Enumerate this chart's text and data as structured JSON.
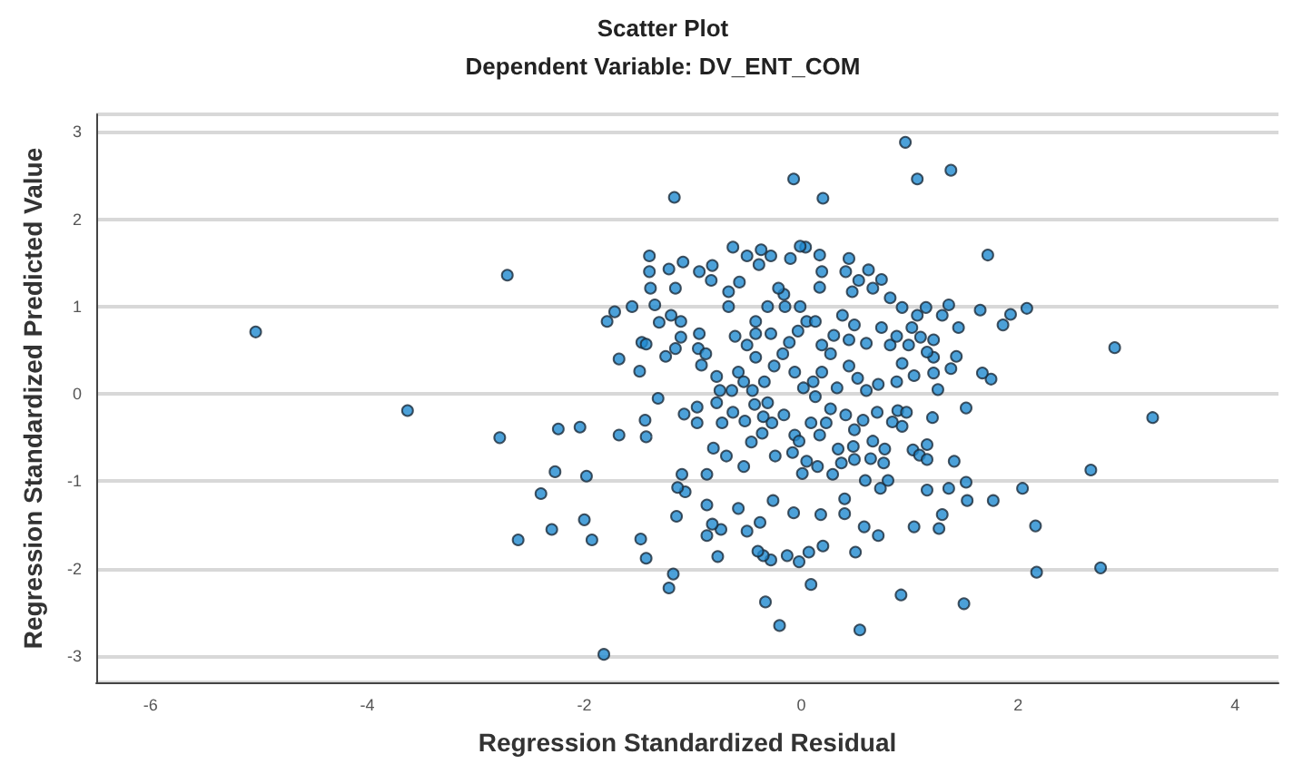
{
  "chart_data": {
    "type": "scatter",
    "title": "Scatter Plot",
    "subtitle": "Dependent Variable: DV_ENT_COM",
    "xlabel": "Regression Standardized Residual",
    "ylabel": "Regression Standardized Predicted Value",
    "xlim": [
      -6.5,
      4.4
    ],
    "ylim": [
      -3.3,
      3.2
    ],
    "xticks": [
      -6,
      -4,
      -2,
      0,
      2,
      4
    ],
    "yticks": [
      -3,
      -2,
      -1,
      0,
      1,
      2,
      3
    ],
    "grid": "y",
    "marker": "circle",
    "series": [
      {
        "color": "#1f8ad0",
        "x": [
          -5.03,
          -3.63,
          -2.71,
          -2.78,
          -2.24,
          -2.04,
          -1.79,
          -2.27,
          -1.98,
          -2.4,
          -2.0,
          -2.3,
          -2.61,
          -1.93,
          -1.82,
          0.96,
          1.07,
          1.38,
          -0.07,
          0.2,
          -1.17,
          1.72,
          2.89,
          3.24,
          2.67,
          2.04,
          2.16,
          2.17,
          2.76,
          0.92,
          1.5,
          0.54,
          -0.2,
          -0.33,
          0.09,
          -1.22,
          -1.18,
          -1.43,
          -1.48,
          -1.68,
          -1.68,
          -1.56,
          -1.72,
          2.08,
          1.93,
          1.86,
          1.65,
          1.75,
          1.67,
          1.52,
          1.53,
          1.77,
          1.36,
          1.52,
          1.41,
          1.3,
          1.27,
          1.04,
          0.71,
          0.58,
          0.5,
          0.2,
          0.07,
          -0.02,
          -0.13,
          -0.28,
          -0.35,
          -0.4,
          -0.5,
          -0.38,
          -0.58,
          -0.26,
          -0.07,
          0.18,
          0.4,
          0.4,
          -0.77,
          -0.74,
          -0.87,
          -0.82,
          -0.87,
          -1.15,
          -1.07,
          -1.14,
          -1.1,
          -0.87,
          -0.53,
          -0.69,
          -0.81,
          -0.46,
          -0.24,
          -0.08,
          0.01,
          0.05,
          0.15,
          0.29,
          0.37,
          0.34,
          0.49,
          0.59,
          0.73,
          0.8,
          0.76,
          0.64,
          0.66,
          0.77,
          1.03,
          1.09,
          1.16,
          1.16,
          1.16,
          0.48,
          0.49,
          0.57,
          0.7,
          0.84,
          0.93,
          0.89,
          0.97,
          1.21,
          1.26,
          1.22,
          1.22,
          1.22,
          1.3,
          1.36,
          1.45,
          1.43,
          1.38,
          1.15,
          1.07,
          0.93,
          0.82,
          0.74,
          0.62,
          0.53,
          0.66,
          0.47,
          0.44,
          0.41,
          0.17,
          0.19,
          0.17,
          0.04,
          -0.01,
          -0.1,
          -0.16,
          -0.21,
          -0.28,
          -0.37,
          -0.39,
          -0.5,
          -0.63,
          -0.57,
          -0.67,
          -0.82,
          -0.83,
          -0.94,
          -1.09,
          -1.22,
          -1.16,
          -1.4,
          -1.4,
          -1.39,
          -1.35,
          -1.31,
          -1.2,
          -1.11,
          -1.11,
          -1.16,
          -1.25,
          -1.47,
          -1.43,
          -1.49,
          -1.32,
          -1.44,
          -1.43,
          -1.08,
          -0.96,
          -0.96,
          -0.94,
          -0.95,
          -0.88,
          -0.92,
          -0.78,
          -0.75,
          -0.78,
          -0.73,
          -0.63,
          -0.52,
          -0.43,
          -0.35,
          -0.27,
          -0.36,
          -0.16,
          -0.06,
          -0.02,
          0.09,
          0.17,
          0.23,
          -0.64,
          -0.58,
          -0.53,
          -0.45,
          -0.34,
          -0.31,
          -0.25,
          -0.42,
          -0.5,
          -0.42,
          -0.28,
          -0.11,
          -0.03,
          0.05,
          0.13,
          -0.01,
          -0.15,
          -0.31,
          -0.42,
          -0.67,
          -0.61,
          -0.17,
          -0.06,
          0.02,
          0.13,
          0.11,
          0.19,
          0.27,
          0.19,
          0.3,
          0.38,
          0.49,
          0.44,
          0.6,
          0.74,
          0.82,
          0.88,
          0.99,
          1.02,
          0.93,
          1.04,
          0.88,
          0.71,
          0.6,
          0.52,
          0.44,
          0.33,
          0.27,
          0.41,
          1.16,
          1.1
        ],
        "values": [
          0.71,
          -0.19,
          1.36,
          -0.5,
          -0.4,
          -0.38,
          0.83,
          -0.89,
          -0.94,
          -1.14,
          -1.44,
          -1.55,
          -1.67,
          -1.67,
          -2.98,
          2.88,
          2.46,
          2.56,
          2.46,
          2.24,
          2.25,
          1.59,
          0.53,
          -0.27,
          -0.87,
          -1.08,
          -1.51,
          -2.04,
          -1.99,
          -2.3,
          -2.4,
          -2.7,
          -2.65,
          -2.38,
          -2.18,
          -2.22,
          -2.06,
          -1.88,
          -1.66,
          -0.47,
          0.4,
          1.0,
          0.94,
          0.98,
          0.91,
          0.79,
          0.96,
          0.17,
          0.24,
          -0.16,
          -1.22,
          -1.22,
          -1.08,
          -1.01,
          -0.77,
          -1.38,
          -1.54,
          -1.52,
          -1.62,
          -1.52,
          -1.81,
          -1.74,
          -1.81,
          -1.92,
          -1.85,
          -1.9,
          -1.85,
          -1.8,
          -1.57,
          -1.47,
          -1.31,
          -1.22,
          -1.36,
          -1.38,
          -1.2,
          -1.37,
          -1.86,
          -1.55,
          -1.62,
          -1.49,
          -1.27,
          -1.4,
          -1.12,
          -1.07,
          -0.92,
          -0.92,
          -0.83,
          -0.71,
          -0.62,
          -0.55,
          -0.71,
          -0.67,
          -0.91,
          -0.77,
          -0.83,
          -0.92,
          -0.79,
          -0.63,
          -0.75,
          -0.99,
          -1.08,
          -0.99,
          -0.79,
          -0.74,
          -0.54,
          -0.63,
          -0.64,
          -0.7,
          -0.75,
          -0.58,
          -1.1,
          -0.6,
          -0.41,
          -0.3,
          -0.21,
          -0.32,
          -0.37,
          -0.19,
          -0.21,
          -0.27,
          0.05,
          0.24,
          0.42,
          0.62,
          0.9,
          1.02,
          0.76,
          0.43,
          0.29,
          0.99,
          0.9,
          0.99,
          1.1,
          1.31,
          1.42,
          1.3,
          1.21,
          1.17,
          1.55,
          1.4,
          1.22,
          1.4,
          1.59,
          1.68,
          1.69,
          1.55,
          1.14,
          1.21,
          1.58,
          1.65,
          1.48,
          1.58,
          1.68,
          1.28,
          1.17,
          1.47,
          1.3,
          1.4,
          1.51,
          1.43,
          1.21,
          1.58,
          1.4,
          1.21,
          1.02,
          0.82,
          0.9,
          0.83,
          0.65,
          0.52,
          0.43,
          0.59,
          0.57,
          0.26,
          -0.05,
          -0.3,
          -0.49,
          -0.23,
          -0.15,
          -0.33,
          0.69,
          0.52,
          0.46,
          0.33,
          0.2,
          0.04,
          -0.1,
          -0.33,
          -0.21,
          -0.31,
          -0.12,
          -0.26,
          -0.33,
          -0.45,
          -0.24,
          -0.47,
          -0.54,
          -0.33,
          -0.47,
          -0.33,
          0.04,
          0.25,
          0.14,
          0.04,
          0.14,
          -0.1,
          0.32,
          0.42,
          0.56,
          0.69,
          0.69,
          0.59,
          0.72,
          0.83,
          0.83,
          1.0,
          1.0,
          1.0,
          0.83,
          1.0,
          0.66,
          0.46,
          0.25,
          0.07,
          -0.03,
          0.14,
          0.25,
          0.46,
          0.56,
          0.67,
          0.9,
          0.79,
          0.62,
          0.58,
          0.76,
          0.56,
          0.66,
          0.56,
          0.76,
          0.35,
          0.21,
          0.14,
          0.11,
          0.04,
          0.18,
          0.32,
          0.07,
          -0.17,
          -0.24,
          0.48,
          0.65
        ]
      }
    ]
  }
}
